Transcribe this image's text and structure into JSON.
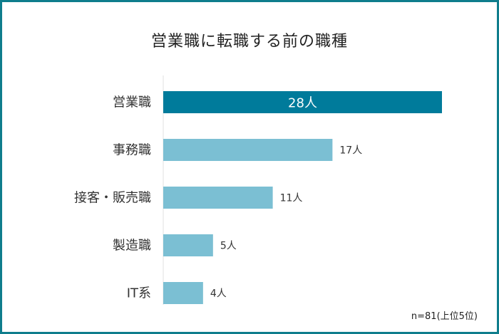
{
  "chart_data": {
    "type": "bar",
    "orientation": "horizontal",
    "title": "営業職に転職する前の職種",
    "categories": [
      "営業職",
      "事務職",
      "接客・販売職",
      "製造職",
      "IT系"
    ],
    "values": [
      28,
      17,
      11,
      5,
      4
    ],
    "value_labels": [
      "28人",
      "17人",
      "11人",
      "5人",
      "4人"
    ],
    "xlim": [
      0,
      28
    ],
    "grid": false,
    "highlight_index": 0,
    "colors": {
      "highlight": "#007b9b",
      "bar": "#7bbfd3",
      "frame": "#0f7d8c"
    }
  },
  "note": "n=81(上位5位)"
}
